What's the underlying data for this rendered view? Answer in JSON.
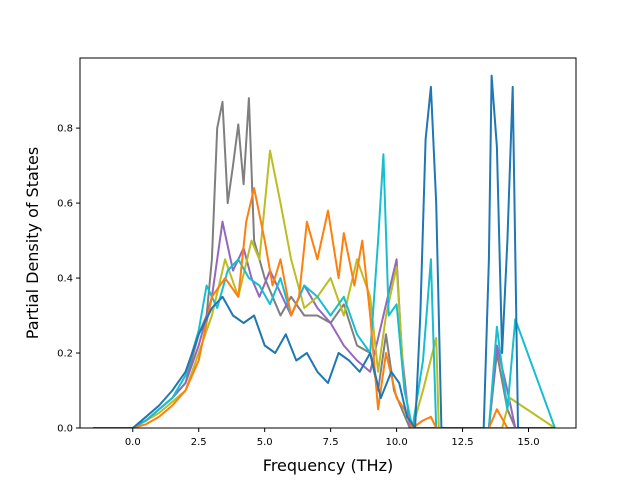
{
  "chart_data": {
    "type": "line",
    "title": "",
    "xlabel": "Frequency (THz)",
    "ylabel": "Partial Density of States",
    "xlim": [
      -2.0,
      16.8
    ],
    "ylim": [
      0.0,
      0.987
    ],
    "grid": false,
    "legend": "none",
    "xticks": [
      0.0,
      2.5,
      5.0,
      7.5,
      10.0,
      12.5,
      15.0
    ],
    "xtick_labels": [
      "0.0",
      "2.5",
      "5.0",
      "7.5",
      "10.0",
      "12.5",
      "15.0"
    ],
    "yticks": [
      0.0,
      0.2,
      0.4,
      0.6,
      0.8
    ],
    "ytick_labels": [
      "0.0",
      "0.2",
      "0.4",
      "0.6",
      "0.8"
    ],
    "series": [
      {
        "color": "#7f7f7f",
        "x": [
          -1.5,
          0.0,
          0.5,
          1.0,
          1.5,
          2.0,
          2.5,
          2.8,
          3.0,
          3.2,
          3.4,
          3.6,
          3.8,
          4.0,
          4.2,
          4.4,
          4.6,
          4.8,
          5.0,
          5.3,
          5.6,
          6.0,
          6.5,
          7.0,
          7.5,
          8.0,
          8.5,
          9.0,
          9.3,
          9.6,
          9.9,
          10.2,
          10.5,
          11.0,
          11.5,
          13.0,
          13.5,
          13.8,
          14.2,
          14.5,
          16.0
        ],
        "y": [
          0.0,
          0.0,
          0.02,
          0.05,
          0.08,
          0.12,
          0.25,
          0.3,
          0.45,
          0.8,
          0.87,
          0.6,
          0.7,
          0.81,
          0.65,
          0.88,
          0.5,
          0.45,
          0.4,
          0.35,
          0.3,
          0.35,
          0.3,
          0.3,
          0.28,
          0.33,
          0.22,
          0.2,
          0.1,
          0.25,
          0.1,
          0.05,
          0.0,
          0.0,
          0.0,
          0.0,
          0.0,
          0.2,
          0.05,
          0.0,
          0.0
        ]
      },
      {
        "color": "#9467bd",
        "x": [
          -1.5,
          0.0,
          0.5,
          1.0,
          1.5,
          2.0,
          2.5,
          3.0,
          3.4,
          3.8,
          4.2,
          4.5,
          4.8,
          5.2,
          5.6,
          6.0,
          6.5,
          7.0,
          7.5,
          8.0,
          8.5,
          9.0,
          9.5,
          10.0,
          10.2,
          10.5,
          11.0,
          11.5,
          13.0,
          13.5,
          13.8,
          14.2,
          14.5,
          16.0
        ],
        "y": [
          0.0,
          0.0,
          0.02,
          0.05,
          0.08,
          0.12,
          0.22,
          0.35,
          0.55,
          0.42,
          0.48,
          0.4,
          0.35,
          0.42,
          0.36,
          0.3,
          0.38,
          0.32,
          0.28,
          0.22,
          0.18,
          0.15,
          0.3,
          0.45,
          0.2,
          0.0,
          0.0,
          0.0,
          0.0,
          0.0,
          0.22,
          0.1,
          0.0,
          0.0
        ]
      },
      {
        "color": "#bcbd22",
        "x": [
          -1.5,
          0.0,
          0.5,
          1.0,
          1.5,
          2.0,
          2.5,
          3.0,
          3.5,
          4.0,
          4.5,
          4.8,
          5.2,
          5.6,
          6.0,
          6.5,
          7.0,
          7.5,
          8.0,
          8.5,
          9.0,
          9.3,
          9.6,
          10.0,
          10.3,
          10.6,
          11.0,
          11.5,
          11.6,
          13.0,
          14.0,
          14.3,
          16.0
        ],
        "y": [
          0.0,
          0.0,
          0.02,
          0.04,
          0.07,
          0.1,
          0.2,
          0.3,
          0.45,
          0.35,
          0.5,
          0.45,
          0.74,
          0.6,
          0.45,
          0.32,
          0.35,
          0.4,
          0.3,
          0.45,
          0.35,
          0.15,
          0.3,
          0.43,
          0.1,
          0.0,
          0.1,
          0.24,
          0.0,
          0.0,
          0.0,
          0.08,
          0.0
        ]
      },
      {
        "color": "#17becf",
        "x": [
          -1.5,
          0.0,
          0.5,
          1.0,
          1.5,
          2.0,
          2.5,
          2.8,
          3.2,
          3.6,
          4.0,
          4.4,
          4.8,
          5.2,
          5.6,
          6.0,
          6.5,
          7.0,
          7.5,
          8.0,
          8.5,
          9.0,
          9.3,
          9.5,
          9.7,
          10.0,
          10.3,
          10.6,
          11.0,
          11.3,
          11.5,
          13.0,
          13.5,
          13.8,
          14.2,
          14.5,
          16.0
        ],
        "y": [
          0.0,
          0.0,
          0.02,
          0.05,
          0.08,
          0.14,
          0.26,
          0.38,
          0.32,
          0.42,
          0.45,
          0.4,
          0.38,
          0.33,
          0.4,
          0.3,
          0.38,
          0.35,
          0.3,
          0.35,
          0.25,
          0.2,
          0.5,
          0.73,
          0.3,
          0.33,
          0.1,
          0.0,
          0.18,
          0.45,
          0.0,
          0.0,
          0.0,
          0.27,
          0.05,
          0.29,
          0.0
        ]
      },
      {
        "color": "#ff7f0e",
        "x": [
          -1.5,
          0.0,
          0.5,
          1.0,
          1.5,
          2.0,
          2.5,
          3.0,
          3.5,
          4.0,
          4.3,
          4.6,
          5.0,
          5.3,
          5.6,
          6.0,
          6.3,
          6.6,
          7.0,
          7.4,
          7.8,
          8.0,
          8.4,
          8.7,
          9.0,
          9.3,
          9.6,
          10.0,
          10.3,
          10.6,
          11.0,
          11.3,
          11.5,
          13.0,
          13.5,
          13.8,
          14.2,
          16.0
        ],
        "y": [
          0.0,
          0.0,
          0.01,
          0.03,
          0.06,
          0.1,
          0.18,
          0.35,
          0.4,
          0.35,
          0.55,
          0.64,
          0.5,
          0.38,
          0.45,
          0.3,
          0.35,
          0.55,
          0.45,
          0.58,
          0.4,
          0.52,
          0.38,
          0.5,
          0.3,
          0.05,
          0.2,
          0.08,
          0.05,
          0.0,
          0.02,
          0.03,
          0.0,
          0.0,
          0.0,
          0.05,
          0.0,
          0.0
        ]
      },
      {
        "color": "#1f77b4",
        "x": [
          -1.5,
          0.0,
          0.5,
          1.0,
          1.5,
          2.0,
          2.5,
          3.0,
          3.4,
          3.8,
          4.2,
          4.6,
          5.0,
          5.4,
          5.8,
          6.2,
          6.6,
          7.0,
          7.4,
          7.8,
          8.2,
          8.6,
          9.0,
          9.4,
          9.8,
          10.1,
          10.4,
          10.7,
          10.9,
          11.1,
          11.3,
          11.5,
          11.7,
          13.3,
          13.5,
          13.6,
          13.8,
          14.0,
          14.2,
          14.4,
          14.6,
          16.0
        ],
        "y": [
          0.0,
          0.0,
          0.03,
          0.06,
          0.1,
          0.15,
          0.25,
          0.32,
          0.35,
          0.3,
          0.28,
          0.3,
          0.22,
          0.2,
          0.25,
          0.18,
          0.2,
          0.15,
          0.12,
          0.2,
          0.18,
          0.15,
          0.2,
          0.08,
          0.15,
          0.12,
          0.03,
          0.0,
          0.3,
          0.77,
          0.91,
          0.6,
          0.0,
          0.0,
          0.45,
          0.94,
          0.75,
          0.2,
          0.5,
          0.91,
          0.0,
          0.0
        ]
      }
    ]
  }
}
